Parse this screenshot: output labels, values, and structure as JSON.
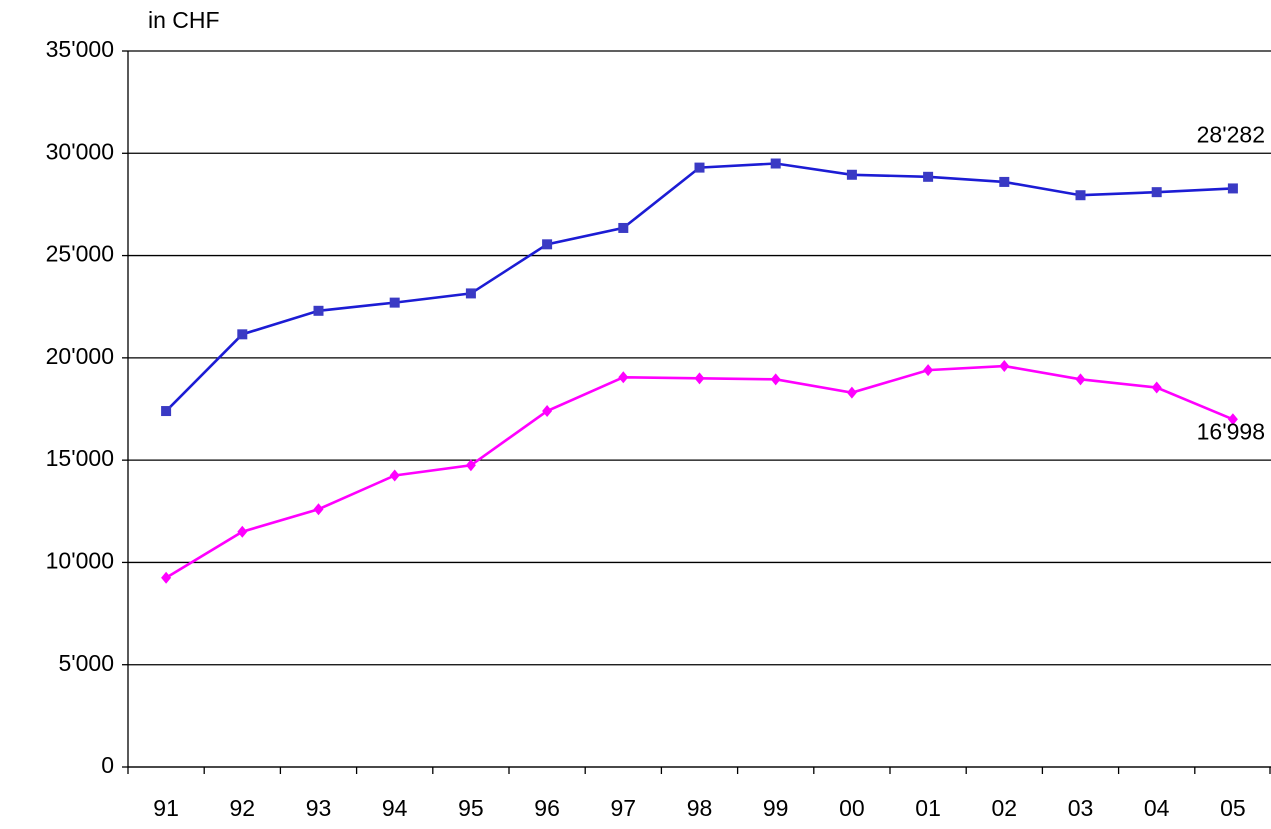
{
  "chart_data": {
    "type": "line",
    "ylabel": "in  CHF",
    "categories": [
      "91",
      "92",
      "93",
      "94",
      "95",
      "96",
      "97",
      "98",
      "99",
      "00",
      "01",
      "02",
      "03",
      "04",
      "05"
    ],
    "series": [
      {
        "color": "#1c1cd4",
        "marker_color": "#3a3ac4",
        "marker": "square",
        "values": [
          17400,
          21150,
          22300,
          22700,
          23150,
          25550,
          26350,
          29300,
          29500,
          28950,
          28850,
          28600,
          27950,
          28100,
          28282
        ],
        "value_labels": [
          null,
          null,
          null,
          null,
          null,
          null,
          null,
          null,
          null,
          null,
          null,
          null,
          null,
          null,
          "28'282"
        ]
      },
      {
        "color": "#ff00ff",
        "marker_color": "#ff00ff",
        "marker": "diamond",
        "values": [
          9250,
          11500,
          12600,
          14250,
          14750,
          17400,
          19050,
          19000,
          18950,
          18300,
          19400,
          19600,
          18950,
          18550,
          16998
        ],
        "value_labels": [
          null,
          null,
          null,
          null,
          null,
          null,
          null,
          null,
          null,
          null,
          null,
          null,
          null,
          null,
          "16'998"
        ]
      }
    ],
    "ylim": [
      0,
      35000
    ],
    "yticks": [
      0,
      {
        "value": 5000,
        "label": "5'000"
      },
      {
        "value": 10000,
        "label": "10'000"
      },
      {
        "value": 15000,
        "label": "15'000"
      },
      {
        "value": 20000,
        "label": "20'000"
      },
      {
        "value": 25000,
        "label": "25'000"
      },
      {
        "value": 30000,
        "label": "30'000"
      },
      {
        "value": 35000,
        "label": "35'000"
      }
    ],
    "grid": true
  }
}
